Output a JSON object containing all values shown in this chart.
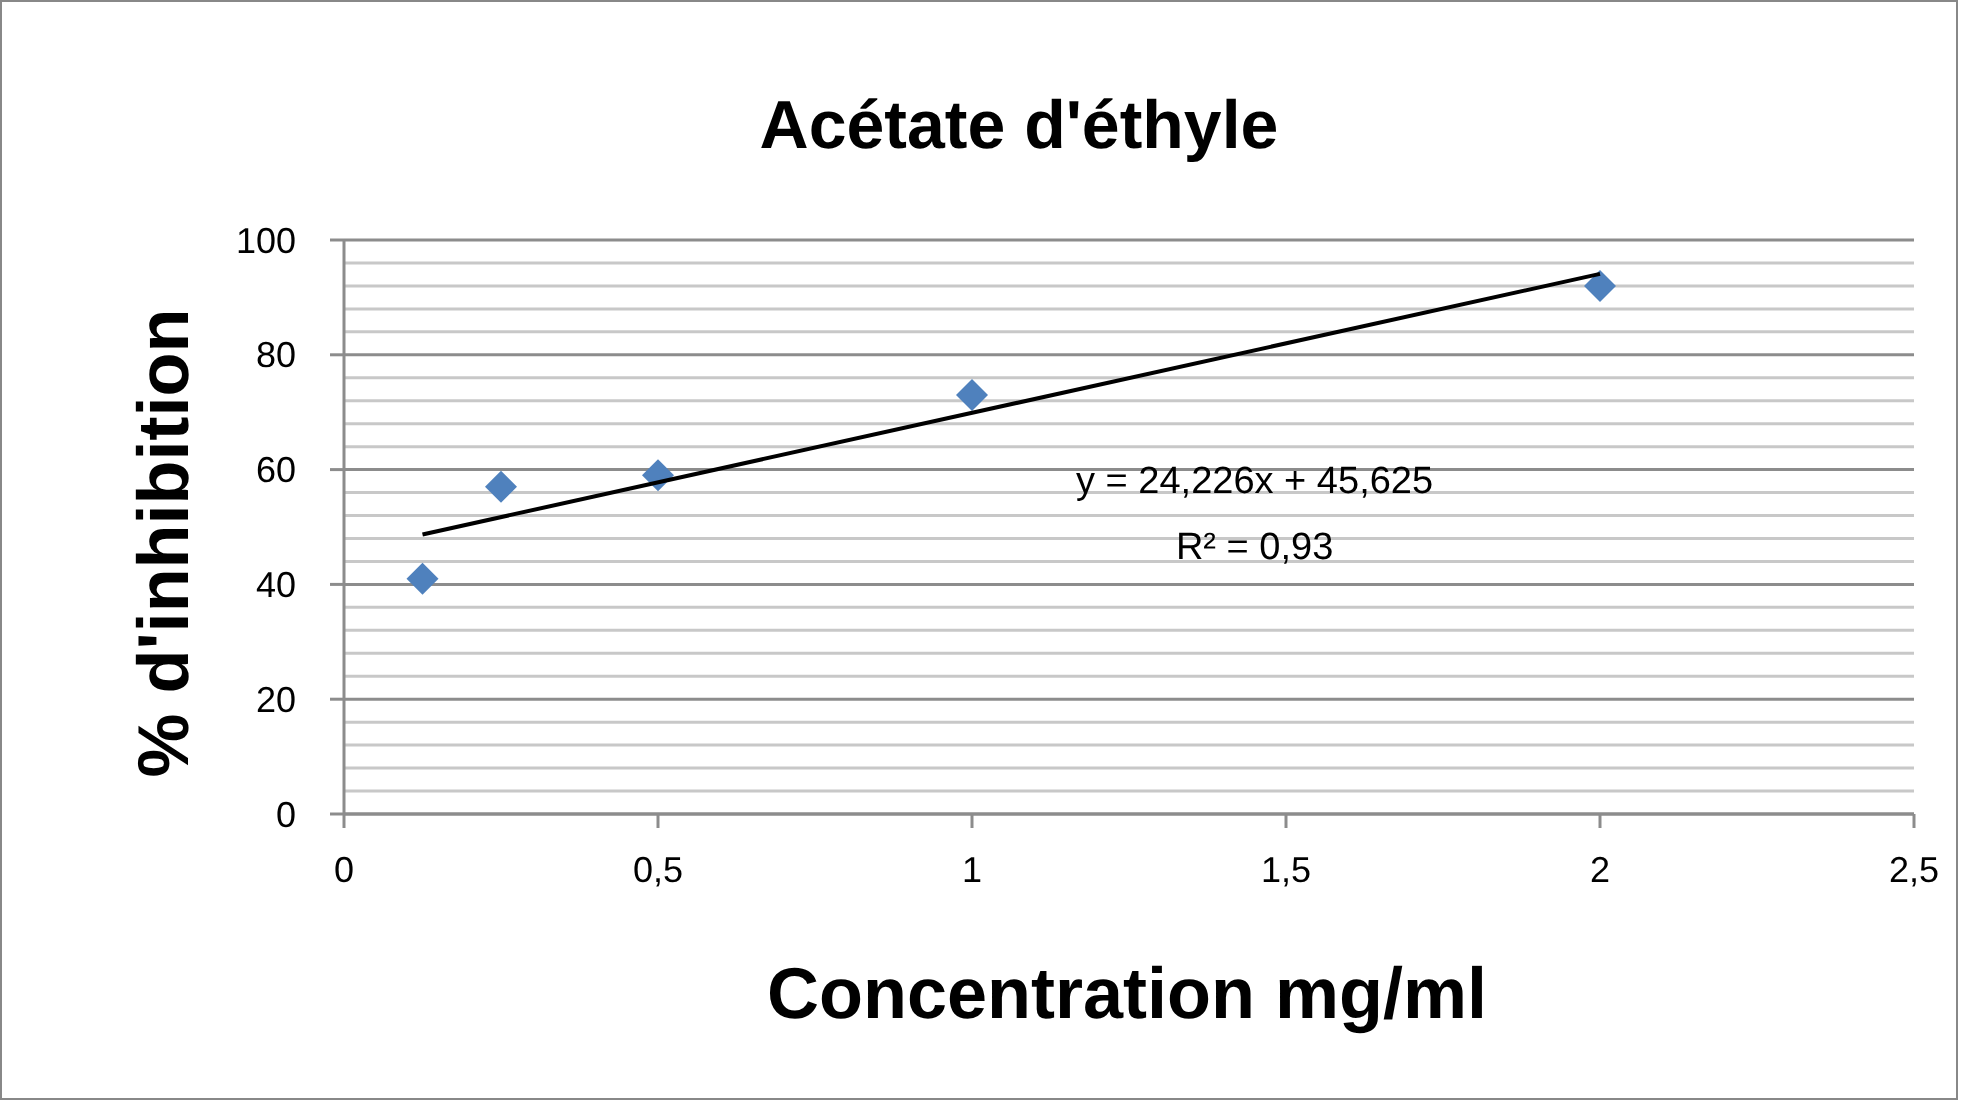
{
  "chart_data": {
    "type": "scatter",
    "title": "Acétate d'éthyle",
    "xlabel": "Concentration mg/ml",
    "ylabel": "% d'inhibition",
    "x": [
      0.125,
      0.25,
      0.5,
      1,
      2
    ],
    "series": [
      {
        "type": "scatter",
        "color": "#4f81bd",
        "marker": "diamond",
        "values": [
          41,
          57,
          59,
          73,
          92
        ]
      },
      {
        "type": "line",
        "color": "#000000",
        "marker": "none",
        "line_style": "solid",
        "x": [
          0.125,
          2
        ],
        "values": [
          48.7,
          94.1
        ]
      }
    ],
    "annotations": [
      "y = 24,226x + 45,625",
      "R² = 0,93"
    ],
    "xlim": [
      0,
      2.5
    ],
    "xticks": [
      {
        "value": 0,
        "label": "0"
      },
      {
        "value": 0.5,
        "label": "0,5"
      },
      {
        "value": 1,
        "label": "1"
      },
      {
        "value": 1.5,
        "label": "1,5"
      },
      {
        "value": 2,
        "label": "2"
      },
      {
        "value": 2.5,
        "label": "2,5"
      }
    ],
    "ylim": [
      0,
      100
    ],
    "yticks": [
      0,
      {
        "value": 4,
        "label": null
      },
      {
        "value": 8,
        "label": null
      },
      {
        "value": 12,
        "label": null
      },
      {
        "value": 16,
        "label": null
      },
      20,
      {
        "value": 24,
        "label": null
      },
      {
        "value": 28,
        "label": null
      },
      {
        "value": 32,
        "label": null
      },
      {
        "value": 36,
        "label": null
      },
      40,
      {
        "value": 44,
        "label": null
      },
      {
        "value": 48,
        "label": null
      },
      {
        "value": 52,
        "label": null
      },
      {
        "value": 56,
        "label": null
      },
      60,
      {
        "value": 64,
        "label": null
      },
      {
        "value": 68,
        "label": null
      },
      {
        "value": 72,
        "label": null
      },
      {
        "value": 76,
        "label": null
      },
      80,
      {
        "value": 84,
        "label": null
      },
      {
        "value": 88,
        "label": null
      },
      {
        "value": 92,
        "label": null
      },
      {
        "value": 96,
        "label": null
      },
      100
    ],
    "grid": "y"
  }
}
